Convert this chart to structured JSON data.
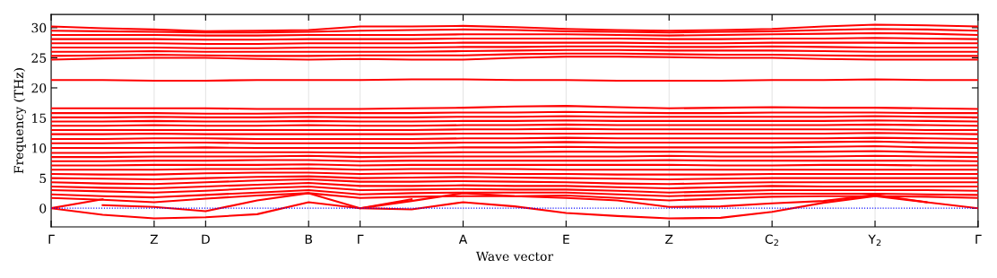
{
  "chart_data": {
    "type": "line",
    "xlabel": "Wave vector",
    "ylabel": "Frequency (THz)",
    "categories": [
      "Γ",
      null,
      "Z",
      "D",
      null,
      "B",
      "Γ",
      null,
      "A",
      null,
      "E",
      null,
      "Z",
      null,
      "C$_{2}$",
      null,
      "Y$_{2}$",
      null,
      "Γ"
    ],
    "ylim": [
      -3.1,
      32.2
    ],
    "yticks": [
      0,
      5,
      10,
      15,
      20,
      25,
      30
    ],
    "grid": "x",
    "line_style": "solid",
    "ref_lines": [
      {
        "axis": "y",
        "value": 0,
        "color": "#0000ff",
        "line_style": "dotted"
      }
    ],
    "series": [
      {
        "color": "#ff0000",
        "values": [
          0,
          -1.1,
          -1.7,
          -1.5,
          -1.0,
          1.0,
          0,
          -0.2,
          1.0,
          0.3,
          -0.8,
          -1.3,
          -1.7,
          -1.6,
          -0.6,
          0.9,
          2.0,
          1.0,
          0
        ]
      },
      {
        "color": "#ff0000",
        "values": [
          null,
          0.5,
          0.2,
          -0.5,
          1.3,
          2.5,
          0,
          1.2,
          2.5,
          2.0,
          1.7,
          1.3,
          0.2,
          0.3,
          0.8,
          1.2,
          2.2,
          1.0,
          null
        ]
      },
      {
        "color": "#ff0000",
        "values": [
          0,
          1.5,
          null,
          null,
          null,
          null,
          null,
          null,
          null,
          null,
          null,
          null,
          null,
          null,
          null,
          null,
          null,
          null,
          null
        ]
      },
      {
        "color": "#ff0000",
        "values": [
          null,
          null,
          null,
          null,
          null,
          null,
          0,
          1.5,
          null,
          null,
          null,
          null,
          null,
          null,
          null,
          null,
          null,
          null,
          null
        ]
      },
      {
        "color": "#ff0000",
        "values": [
          1.7,
          1.4,
          1.0,
          1.6,
          2.1,
          2.5,
          1.7,
          1.9,
          2.0,
          2.0,
          2.1,
          1.7,
          1.3,
          1.6,
          1.9,
          2.0,
          2.0,
          1.9,
          1.7
        ]
      },
      {
        "color": "#ff0000",
        "values": [
          2.3,
          2.0,
          1.8,
          2.2,
          2.6,
          3.0,
          2.3,
          2.5,
          2.6,
          2.6,
          2.6,
          2.3,
          2.0,
          2.2,
          2.4,
          2.4,
          2.4,
          2.3,
          2.2
        ]
      },
      {
        "color": "#ff0000",
        "values": [
          3.0,
          2.8,
          2.6,
          2.9,
          3.3,
          3.6,
          3.0,
          3.1,
          3.2,
          3.1,
          3.1,
          2.9,
          2.6,
          2.8,
          3.0,
          3.0,
          3.0,
          3.0,
          2.9
        ]
      },
      {
        "color": "#ff0000",
        "values": [
          3.6,
          3.4,
          3.3,
          3.6,
          3.9,
          4.2,
          3.7,
          3.7,
          3.8,
          3.7,
          3.7,
          3.5,
          3.3,
          3.5,
          3.7,
          3.6,
          3.6,
          3.6,
          3.6
        ]
      },
      {
        "color": "#ff0000",
        "values": [
          4.3,
          4.1,
          4.0,
          4.3,
          4.6,
          4.8,
          4.4,
          4.4,
          4.5,
          4.4,
          4.3,
          4.1,
          4.0,
          4.2,
          4.3,
          4.3,
          4.3,
          4.3,
          4.3
        ]
      },
      {
        "color": "#ff0000",
        "values": [
          5.0,
          4.9,
          4.8,
          5.0,
          5.2,
          5.3,
          5.0,
          5.1,
          5.2,
          5.1,
          5.0,
          4.9,
          4.8,
          4.9,
          5.0,
          5.0,
          5.0,
          5.0,
          5.0
        ]
      },
      {
        "color": "#ff0000",
        "values": [
          5.7,
          5.6,
          5.6,
          5.8,
          5.9,
          5.9,
          5.7,
          5.8,
          5.8,
          5.7,
          5.7,
          5.6,
          5.6,
          5.6,
          5.7,
          5.7,
          5.7,
          5.7,
          5.7
        ]
      },
      {
        "color": "#ff0000",
        "values": [
          6.4,
          6.4,
          6.4,
          6.5,
          6.5,
          6.6,
          6.4,
          6.5,
          6.5,
          6.5,
          6.4,
          6.4,
          6.4,
          6.4,
          6.4,
          6.4,
          6.4,
          6.4,
          6.4
        ]
      },
      {
        "color": "#ff0000",
        "values": [
          7.1,
          7.1,
          7.2,
          7.2,
          7.2,
          7.3,
          7.1,
          7.2,
          7.2,
          7.2,
          7.2,
          7.2,
          7.2,
          7.1,
          7.1,
          7.2,
          7.2,
          7.1,
          7.1
        ]
      },
      {
        "color": "#ff0000",
        "values": [
          7.8,
          7.8,
          7.9,
          7.9,
          8.0,
          8.0,
          7.8,
          7.9,
          7.9,
          7.9,
          7.9,
          7.9,
          8.0,
          7.9,
          7.9,
          7.9,
          7.9,
          7.9,
          7.8
        ]
      },
      {
        "color": "#ff0000",
        "values": [
          8.5,
          8.5,
          8.6,
          8.6,
          8.6,
          8.7,
          8.5,
          8.6,
          8.6,
          8.6,
          8.6,
          8.6,
          8.7,
          8.6,
          8.6,
          8.6,
          8.7,
          8.6,
          8.5
        ]
      },
      {
        "color": "#ff0000",
        "values": [
          9.2,
          9.2,
          9.3,
          9.3,
          9.3,
          9.3,
          9.2,
          9.2,
          9.3,
          9.3,
          9.4,
          9.4,
          9.4,
          9.3,
          9.3,
          9.4,
          9.5,
          9.3,
          9.2
        ]
      },
      {
        "color": "#ff0000",
        "values": [
          10.0,
          10.0,
          10.0,
          10.1,
          10.0,
          10.0,
          10.0,
          10.0,
          10.1,
          10.1,
          10.2,
          10.1,
          10.1,
          10.1,
          10.1,
          10.2,
          10.3,
          10.1,
          10.0
        ]
      },
      {
        "color": "#ff0000",
        "values": [
          10.8,
          10.8,
          10.9,
          10.9,
          10.8,
          10.8,
          10.8,
          10.8,
          10.9,
          10.9,
          11.0,
          10.9,
          10.9,
          10.9,
          10.9,
          11.0,
          11.1,
          10.9,
          10.8
        ]
      },
      {
        "color": "#ff0000",
        "values": [
          11.5,
          11.5,
          11.6,
          11.6,
          11.5,
          11.5,
          11.5,
          11.5,
          11.6,
          11.6,
          11.7,
          11.6,
          11.6,
          11.6,
          11.6,
          11.6,
          11.7,
          11.6,
          11.5
        ]
      },
      {
        "color": "#ff0000",
        "values": [
          12.3,
          12.3,
          12.4,
          12.3,
          12.3,
          12.3,
          12.3,
          12.3,
          12.4,
          12.4,
          12.4,
          12.4,
          12.4,
          12.4,
          12.4,
          12.4,
          12.5,
          12.4,
          12.3
        ]
      },
      {
        "color": "#ff0000",
        "values": [
          13.0,
          13.0,
          13.0,
          13.0,
          13.0,
          13.0,
          13.0,
          13.0,
          13.1,
          13.1,
          13.2,
          13.1,
          13.1,
          13.1,
          13.1,
          13.1,
          13.1,
          13.0,
          13.0
        ]
      },
      {
        "color": "#ff0000",
        "values": [
          13.7,
          13.7,
          13.8,
          13.7,
          13.7,
          13.8,
          13.7,
          13.7,
          13.8,
          13.8,
          13.9,
          13.8,
          13.8,
          13.8,
          13.8,
          13.8,
          13.9,
          13.8,
          13.7
        ]
      },
      {
        "color": "#ff0000",
        "values": [
          14.4,
          14.4,
          14.5,
          14.4,
          14.4,
          14.5,
          14.4,
          14.4,
          14.5,
          14.5,
          14.6,
          14.5,
          14.5,
          14.5,
          14.5,
          14.5,
          14.6,
          14.5,
          14.4
        ]
      },
      {
        "color": "#ff0000",
        "values": [
          15.1,
          15.1,
          15.2,
          15.1,
          15.1,
          15.2,
          15.1,
          15.1,
          15.2,
          15.2,
          15.3,
          15.2,
          15.2,
          15.2,
          15.2,
          15.2,
          15.3,
          15.2,
          15.1
        ]
      },
      {
        "color": "#ff0000",
        "values": [
          15.8,
          15.8,
          15.8,
          15.7,
          15.7,
          15.8,
          15.8,
          15.8,
          15.9,
          15.9,
          16.0,
          15.9,
          15.8,
          15.8,
          15.9,
          15.9,
          15.9,
          15.8,
          15.8
        ]
      },
      {
        "color": "#ff0000",
        "values": [
          16.6,
          16.6,
          16.6,
          16.6,
          16.5,
          16.5,
          16.5,
          16.6,
          16.7,
          16.9,
          17.0,
          16.8,
          16.6,
          16.7,
          16.8,
          16.7,
          16.7,
          16.6,
          16.5
        ]
      },
      {
        "color": "#ff0000",
        "values": [
          21.3,
          21.3,
          21.2,
          21.2,
          21.3,
          21.3,
          21.3,
          21.4,
          21.4,
          21.3,
          21.3,
          21.2,
          21.2,
          21.2,
          21.3,
          21.3,
          21.4,
          21.3,
          21.3
        ]
      },
      {
        "color": "#ff0000",
        "values": [
          24.7,
          24.9,
          25.0,
          25.0,
          24.8,
          24.7,
          24.8,
          24.7,
          24.7,
          25.0,
          25.2,
          25.2,
          25.1,
          25.0,
          25.0,
          24.8,
          24.7,
          24.7,
          24.7
        ]
      },
      {
        "color": "#ff0000",
        "values": [
          25.3,
          25.4,
          25.5,
          25.4,
          25.3,
          25.3,
          25.4,
          25.4,
          25.4,
          25.6,
          25.7,
          25.7,
          25.6,
          25.5,
          25.5,
          25.4,
          25.3,
          25.3,
          25.3
        ]
      },
      {
        "color": "#ff0000",
        "values": [
          26.0,
          26.0,
          26.1,
          26.0,
          26.0,
          26.0,
          26.0,
          26.0,
          26.1,
          26.2,
          26.3,
          26.3,
          26.2,
          26.2,
          26.2,
          26.1,
          26.0,
          26.0,
          26.0
        ]
      },
      {
        "color": "#ff0000",
        "values": [
          26.7,
          26.7,
          26.7,
          26.6,
          26.6,
          26.7,
          26.7,
          26.7,
          26.8,
          26.8,
          26.9,
          26.9,
          26.8,
          26.8,
          26.9,
          26.8,
          26.7,
          26.7,
          26.7
        ]
      },
      {
        "color": "#ff0000",
        "values": [
          27.4,
          27.4,
          27.4,
          27.3,
          27.3,
          27.4,
          27.4,
          27.4,
          27.5,
          27.5,
          27.5,
          27.5,
          27.4,
          27.4,
          27.5,
          27.5,
          27.5,
          27.4,
          27.4
        ]
      },
      {
        "color": "#ff0000",
        "values": [
          28.1,
          28.1,
          28.1,
          28.0,
          28.0,
          28.1,
          28.1,
          28.1,
          28.2,
          28.2,
          28.2,
          28.2,
          28.1,
          28.1,
          28.2,
          28.2,
          28.3,
          28.2,
          28.1
        ]
      },
      {
        "color": "#ff0000",
        "values": [
          28.8,
          28.8,
          28.8,
          28.7,
          28.7,
          28.8,
          28.8,
          28.8,
          28.9,
          28.9,
          28.9,
          28.8,
          28.7,
          28.8,
          28.9,
          29.0,
          29.1,
          29.0,
          28.8
        ]
      },
      {
        "color": "#ff0000",
        "values": [
          29.5,
          29.4,
          29.3,
          29.2,
          29.2,
          29.3,
          29.5,
          29.6,
          29.7,
          29.6,
          29.4,
          29.3,
          29.2,
          29.3,
          29.4,
          29.6,
          29.8,
          29.7,
          29.5
        ]
      },
      {
        "color": "#ff0000",
        "values": [
          30.2,
          29.9,
          29.7,
          29.4,
          29.5,
          29.6,
          30.2,
          30.2,
          30.3,
          30.1,
          29.8,
          29.6,
          29.5,
          29.6,
          29.8,
          30.2,
          30.5,
          30.4,
          30.2
        ]
      }
    ]
  }
}
